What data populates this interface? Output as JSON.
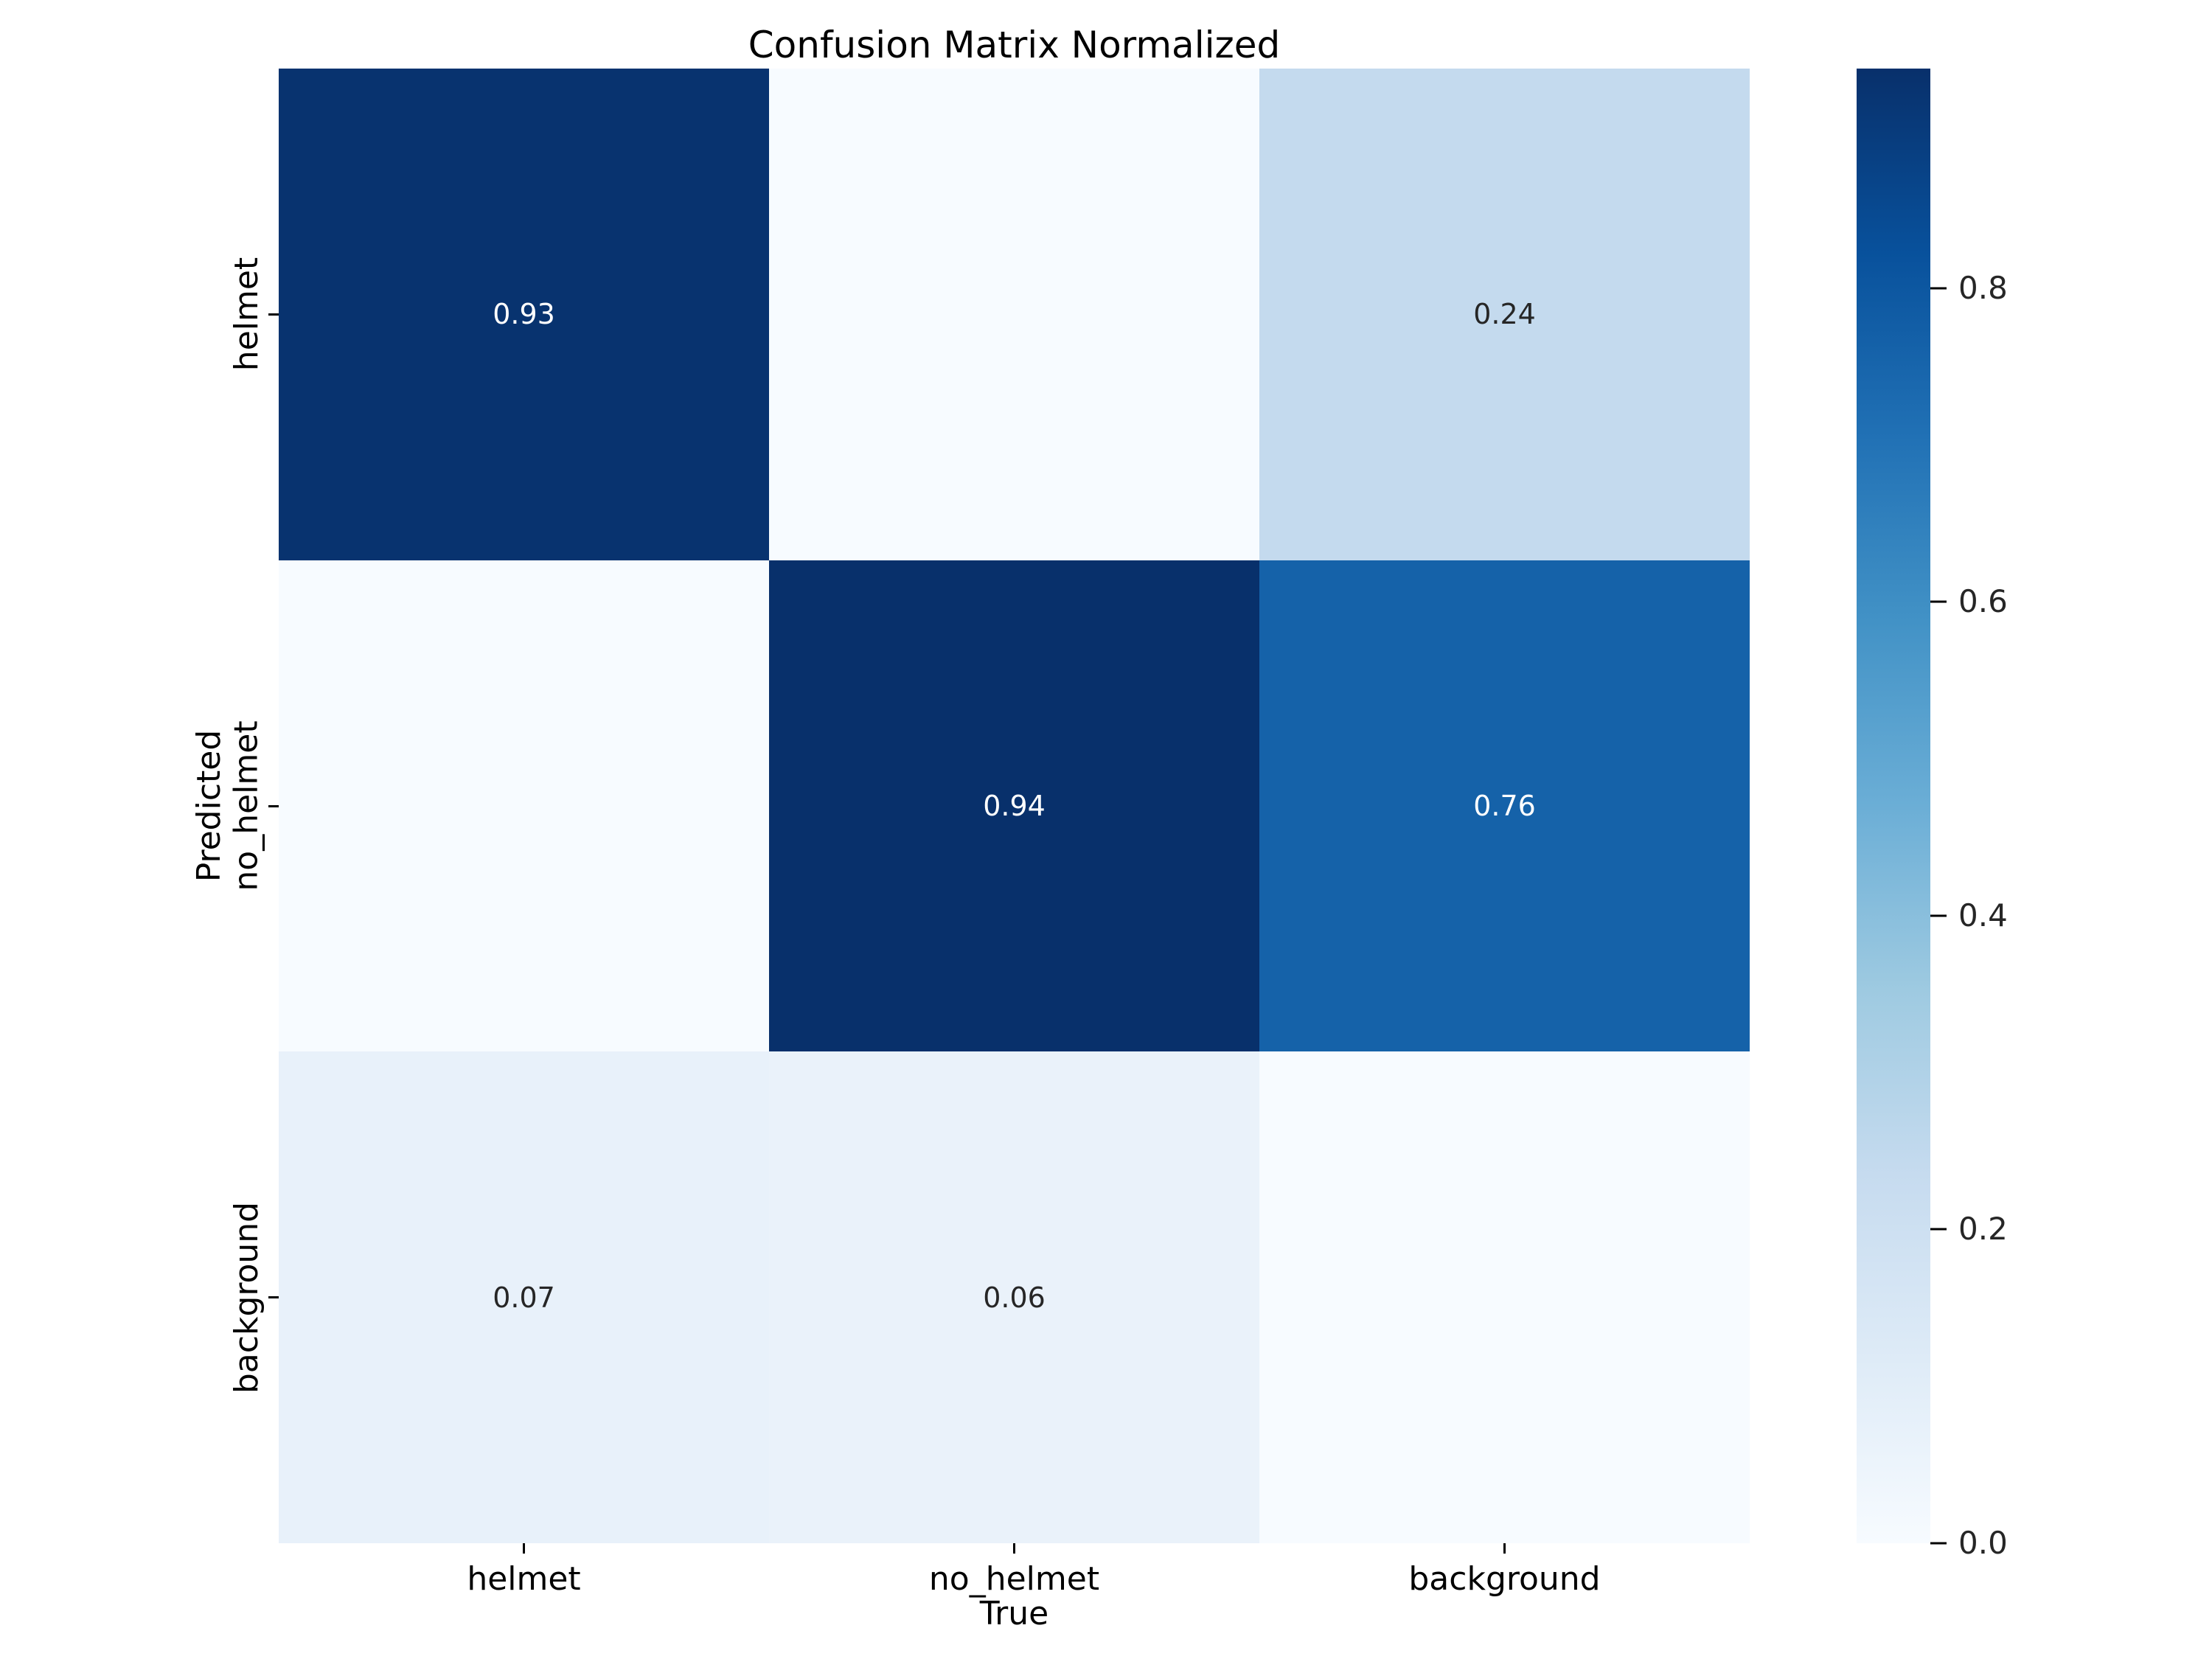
{
  "figure": {
    "title": "Confusion Matrix Normalized",
    "background": "#ffffff"
  },
  "chart_data": {
    "type": "heatmap",
    "title": "Confusion Matrix Normalized",
    "xlabel": "True",
    "ylabel": "Predicted",
    "x_categories": [
      "helmet",
      "no_helmet",
      "background"
    ],
    "y_categories": [
      "helmet",
      "no_helmet",
      "background"
    ],
    "matrix_rows_predicted_cols_true": [
      [
        0.93,
        0.0,
        0.24
      ],
      [
        0.0,
        0.94,
        0.76
      ],
      [
        0.07,
        0.06,
        0.0
      ]
    ],
    "annotations": [
      [
        "0.93",
        "",
        "0.24"
      ],
      [
        "",
        "0.94",
        "0.76"
      ],
      [
        "0.07",
        "0.06",
        ""
      ]
    ],
    "colormap": "Blues",
    "vmin": 0.0,
    "vmax": 0.94,
    "colorbar_ticks": [
      {
        "label": "0.0",
        "value": 0.0
      },
      {
        "label": "0.2",
        "value": 0.2
      },
      {
        "label": "0.4",
        "value": 0.4
      },
      {
        "label": "0.6",
        "value": 0.6
      },
      {
        "label": "0.8",
        "value": 0.8
      }
    ],
    "grid": false,
    "legend_position": "right-colorbar"
  },
  "cells": [
    {
      "row": 0,
      "col": 0,
      "label": "0.93",
      "bg": "#08336f",
      "fg": "#ffffff"
    },
    {
      "row": 0,
      "col": 1,
      "label": "",
      "bg": "#f7fbff",
      "fg": "#262626"
    },
    {
      "row": 0,
      "col": 2,
      "label": "0.24",
      "bg": "#c4daee",
      "fg": "#262626"
    },
    {
      "row": 1,
      "col": 0,
      "label": "",
      "bg": "#f7fbff",
      "fg": "#262626"
    },
    {
      "row": 1,
      "col": 1,
      "label": "0.94",
      "bg": "#08306b",
      "fg": "#ffffff"
    },
    {
      "row": 1,
      "col": 2,
      "label": "0.76",
      "bg": "#1562a9",
      "fg": "#ffffff"
    },
    {
      "row": 2,
      "col": 0,
      "label": "0.07",
      "bg": "#e8f1fa",
      "fg": "#262626"
    },
    {
      "row": 2,
      "col": 1,
      "label": "0.06",
      "bg": "#eaf2fa",
      "fg": "#262626"
    },
    {
      "row": 2,
      "col": 2,
      "label": "",
      "bg": "#f7fbff",
      "fg": "#262626"
    }
  ],
  "colorbar": {
    "stops_bottom_to_top": [
      "#f7fbff",
      "#deebf7",
      "#c6dbef",
      "#9ecae1",
      "#6baed6",
      "#4292c6",
      "#2171b5",
      "#08519c",
      "#08306b"
    ]
  },
  "colors": {
    "figure_background": "#ffffff",
    "axis_text": "#000000",
    "annotation_dark": "#262626",
    "annotation_light": "#ffffff",
    "cmap_min": "#f7fbff",
    "cmap_max": "#08306b"
  }
}
